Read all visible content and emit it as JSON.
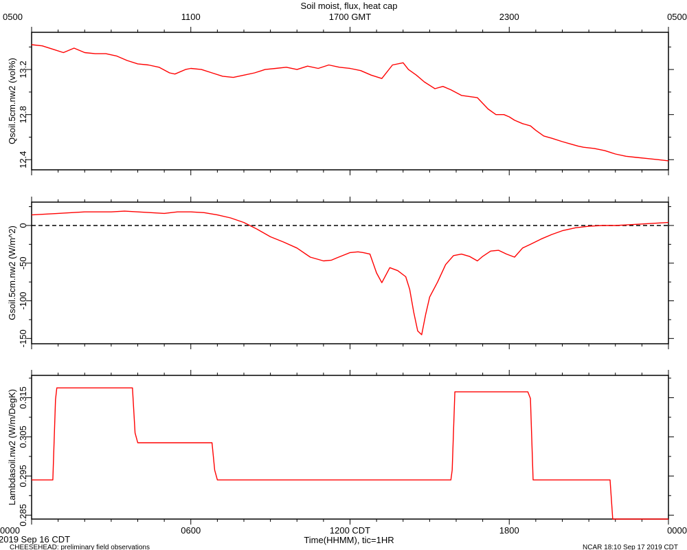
{
  "chart_data": {
    "type": "line",
    "title": "Soil moist, flux, heat cap",
    "top_axis": {
      "ticks": [
        0,
        6,
        12,
        18,
        24
      ],
      "tick_labels": [
        "0500",
        "1100",
        "1700 GMT",
        "2300",
        "0500"
      ]
    },
    "bottom_axis": {
      "ticks": [
        0,
        6,
        12,
        18,
        24
      ],
      "tick_labels": [
        "0000",
        "0600",
        "1200 CDT",
        "1800",
        "0000"
      ],
      "xlabel": "Time(HHMM), tic=1HR",
      "xlim": [
        0,
        24
      ]
    },
    "footer": {
      "left_date": "2019 Sep 16 CDT",
      "left_note": "CHEESEHEAD: preliminary field observations",
      "right_note": "NCAR 18:10 Sep 17 2019 CDT"
    },
    "panels": [
      {
        "name": "qsoil",
        "ylabel": "Qsoil.5cm.nw2 (vol%)",
        "ylim": [
          12.31,
          13.53
        ],
        "yticks": [
          12.4,
          12.8,
          13.2
        ],
        "ytick_labels": [
          "12.4",
          "12.8",
          "13.2"
        ],
        "line_color": "#ff0000",
        "series": [
          {
            "x": [
              0,
              0.4,
              0.8,
              1.2,
              1.6,
              2.0,
              2.4,
              2.8,
              3.2,
              3.6,
              4.0,
              4.4,
              4.8,
              5.2,
              5.4,
              5.8,
              6.0,
              6.4,
              6.8,
              7.2,
              7.6,
              8.0,
              8.4,
              8.8,
              9.2,
              9.6,
              10.0,
              10.4,
              10.8,
              11.2,
              11.6,
              12.0,
              12.4,
              12.8,
              13.2,
              13.6,
              14.0,
              14.2,
              14.5,
              14.8,
              15.2,
              15.5,
              15.8,
              16.2,
              16.5,
              16.8,
              17.2,
              17.5,
              17.8,
              18.0,
              18.2,
              18.5,
              18.8,
              19.0,
              19.3,
              19.6,
              20.0,
              20.3,
              20.6,
              20.8,
              21.2,
              21.6,
              22.0,
              22.4,
              22.8,
              23.2,
              23.6,
              24.0
            ],
            "y": [
              13.42,
              13.41,
              13.38,
              13.35,
              13.39,
              13.35,
              13.34,
              13.34,
              13.32,
              13.28,
              13.25,
              13.24,
              13.22,
              13.17,
              13.16,
              13.2,
              13.21,
              13.2,
              13.17,
              13.14,
              13.13,
              13.15,
              13.17,
              13.2,
              13.21,
              13.22,
              13.2,
              13.23,
              13.21,
              13.24,
              13.22,
              13.21,
              13.19,
              13.15,
              13.12,
              13.24,
              13.26,
              13.2,
              13.15,
              13.09,
              13.03,
              13.05,
              13.02,
              12.97,
              12.96,
              12.95,
              12.85,
              12.8,
              12.8,
              12.78,
              12.75,
              12.72,
              12.7,
              12.66,
              12.61,
              12.59,
              12.56,
              12.54,
              12.52,
              12.51,
              12.5,
              12.48,
              12.45,
              12.43,
              12.42,
              12.41,
              12.4,
              12.39
            ]
          }
        ]
      },
      {
        "name": "gsoil",
        "ylabel": "Gsoil.5cm.nw2 (W/m^2)",
        "ylim": [
          -157,
          31
        ],
        "yticks": [
          -150,
          -100,
          -50,
          0
        ],
        "ytick_labels": [
          "-150",
          "-100",
          "-50",
          "0"
        ],
        "zero_line": true,
        "line_color": "#ff0000",
        "series": [
          {
            "x": [
              0,
              1,
              2,
              3,
              3.5,
              4,
              4.5,
              5,
              5.5,
              6,
              6.5,
              7,
              7.5,
              8,
              8.5,
              9,
              9.5,
              10,
              10.5,
              11,
              11.3,
              11.5,
              12,
              12.3,
              12.5,
              12.75,
              13.0,
              13.2,
              13.5,
              13.8,
              14.1,
              14.25,
              14.4,
              14.55,
              14.7,
              14.85,
              15.0,
              15.3,
              15.6,
              15.9,
              16.2,
              16.5,
              16.8,
              17.0,
              17.3,
              17.6,
              17.9,
              18.2,
              18.5,
              18.8,
              19.2,
              19.6,
              20.0,
              20.5,
              21.0,
              21.5,
              22.0,
              22.5,
              23.0,
              23.5,
              24.0
            ],
            "y": [
              14,
              16,
              18,
              18,
              19,
              18,
              17,
              16,
              18,
              18,
              17,
              14,
              10,
              4,
              -5,
              -15,
              -22,
              -30,
              -42,
              -47,
              -46,
              -43,
              -36,
              -35,
              -36,
              -38,
              -63,
              -76,
              -56,
              -60,
              -68,
              -85,
              -115,
              -140,
              -145,
              -118,
              -95,
              -75,
              -52,
              -40,
              -38,
              -41,
              -47,
              -41,
              -34,
              -33,
              -38,
              -42,
              -30,
              -25,
              -18,
              -12,
              -7,
              -3,
              -1,
              0,
              0,
              1,
              2,
              3,
              4
            ]
          }
        ]
      },
      {
        "name": "lambda",
        "ylabel": "Lambdasoil.nw2 (W/m/DegK)",
        "ylim": [
          0.284,
          0.3207
        ],
        "yticks": [
          0.285,
          0.295,
          0.305,
          0.315
        ],
        "ytick_labels": [
          "0.285",
          "0.295",
          "0.305",
          "0.315"
        ],
        "line_color": "#ff0000",
        "series": [
          {
            "x": [
              0,
              0.8,
              0.9,
              0.95,
              3.8,
              3.9,
              4.0,
              6.8,
              6.9,
              7.0,
              15.8,
              15.85,
              15.95,
              18.7,
              18.8,
              18.9,
              21.8,
              21.9,
              24.0
            ],
            "y": [
              0.294,
              0.294,
              0.3145,
              0.3175,
              0.3175,
              0.306,
              0.3035,
              0.3035,
              0.2965,
              0.294,
              0.294,
              0.2965,
              0.3165,
              0.3165,
              0.3148,
              0.294,
              0.294,
              0.284,
              0.284
            ]
          }
        ]
      }
    ]
  }
}
